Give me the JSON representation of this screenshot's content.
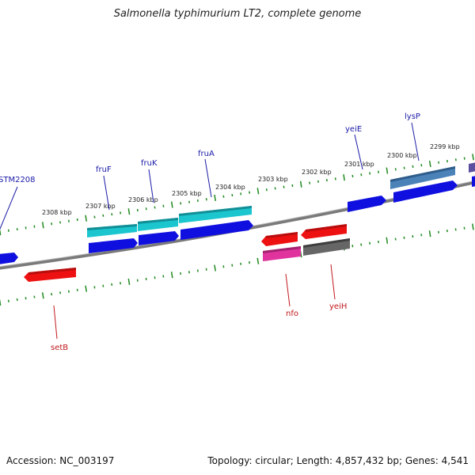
{
  "title": "Salmonella typhimurium LT2, complete genome",
  "footer": {
    "accession": "Accession: NC_003197",
    "summary": "Topology: circular; Length: 4,857,432 bp; Genes: 4,541"
  },
  "colors": {
    "background": "#ffffff",
    "backbone": "#7a7a7a",
    "tick": "#1f8a1f",
    "forward_label": "#1a1aa8",
    "reverse_label": "#c0171b",
    "cds_blue": "#0f0fe0",
    "cyan": "#1cc6cf",
    "steelblue": "#4b82b8",
    "red": "#ee1111",
    "magenta": "#e0339e",
    "gray": "#666666",
    "purple": "#5a4fa0"
  },
  "scale_labels": [
    "2308 kbp",
    "2307 kbp",
    "2306 kbp",
    "2305 kbp",
    "2304 kbp",
    "2303 kbp",
    "2302 kbp",
    "2301 kbp",
    "2300 kbp",
    "2299 kbp"
  ],
  "forward_genes": [
    {
      "name": "STM2208",
      "color": "cds_blue"
    },
    {
      "name": "fruF",
      "color": "cyan"
    },
    {
      "name": "fruK",
      "color": "cyan"
    },
    {
      "name": "fruA",
      "color": "cyan"
    },
    {
      "name": "yeiE",
      "color": "cds_blue"
    },
    {
      "name": "lysP",
      "color": "steelblue"
    }
  ],
  "reverse_genes": [
    {
      "name": "setB",
      "color": "red"
    },
    {
      "name": "nfo",
      "color": "magenta"
    },
    {
      "name": "yeiH",
      "color": "gray"
    }
  ]
}
